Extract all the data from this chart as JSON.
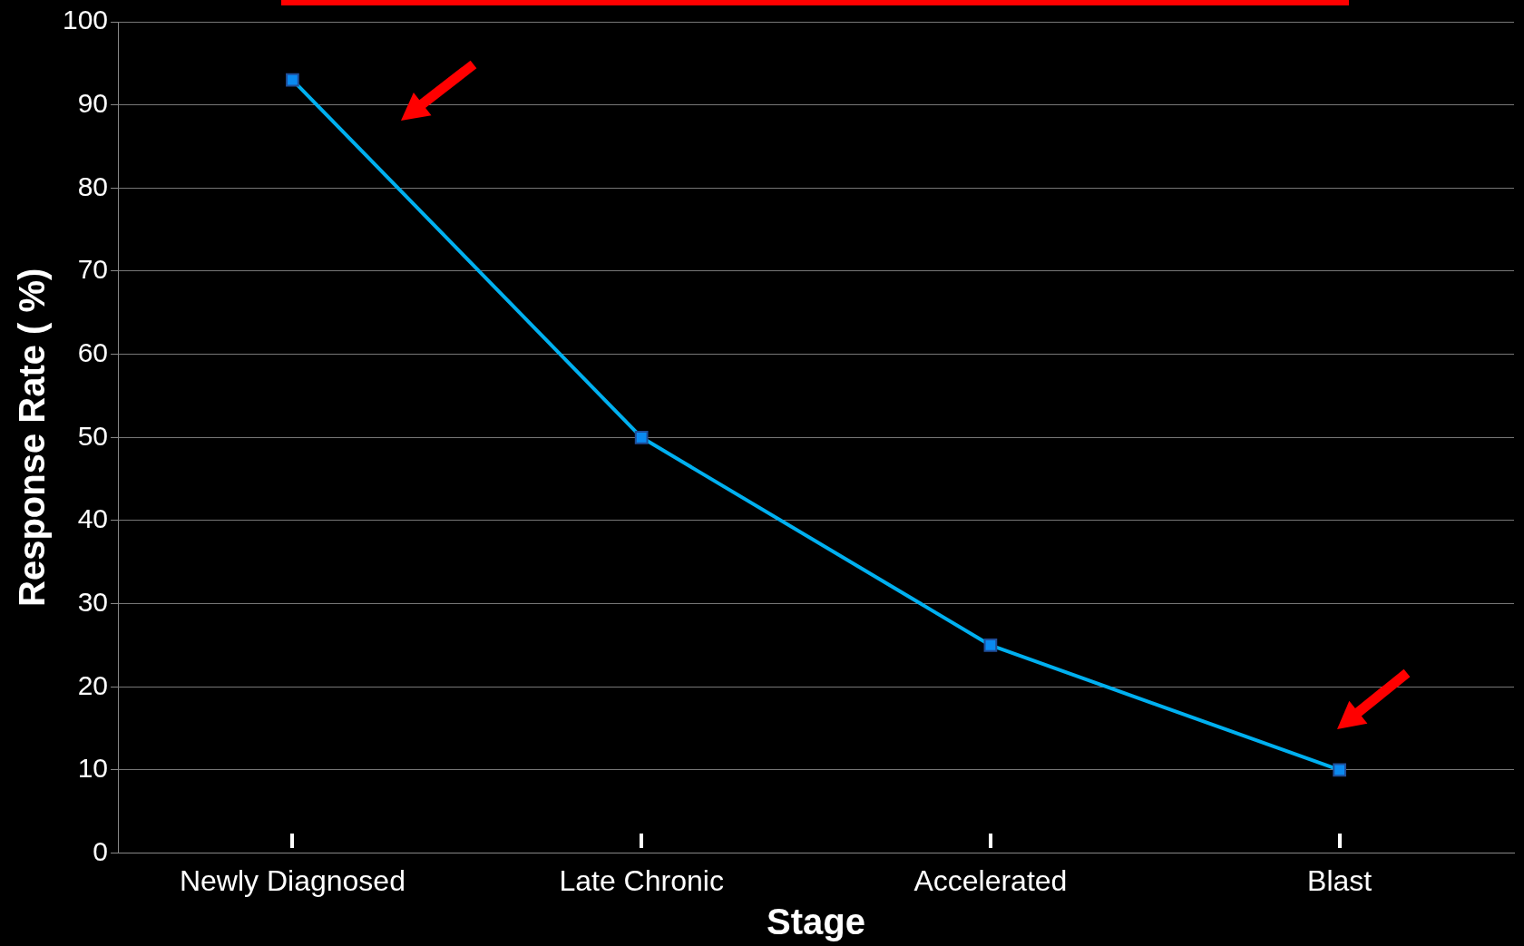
{
  "chart_data": {
    "type": "line",
    "xlabel": "Stage",
    "ylabel": "Response Rate ( %)",
    "categories": [
      "Newly Diagnosed",
      "Late Chronic",
      "Accelerated",
      "Blast"
    ],
    "series": [
      {
        "color": "#00b0f0",
        "values": [
          93,
          50,
          25,
          10
        ]
      }
    ],
    "ylim": [
      0,
      100
    ],
    "yticks": [
      0,
      10,
      20,
      30,
      40,
      50,
      60,
      70,
      80,
      90,
      100
    ],
    "grid": "y",
    "marker": "square",
    "legend": false
  }
}
